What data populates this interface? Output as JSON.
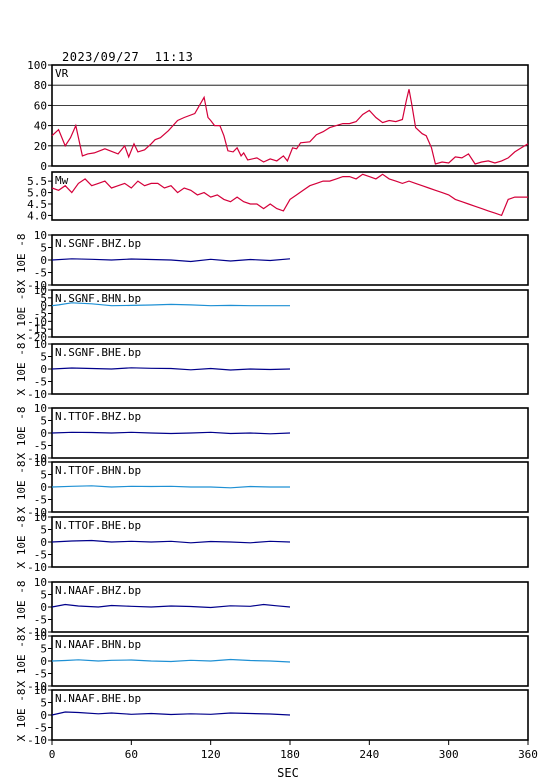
{
  "header": {
    "timestamp": "2023/09/27  11:13"
  },
  "xaxis": {
    "label": "SEC",
    "range": [
      0,
      360
    ],
    "ticks": [
      0,
      60,
      120,
      180,
      240,
      300,
      360
    ]
  },
  "colors": {
    "vr_mw": "#d4003a",
    "bhz": "#00008b",
    "bhn": "#1e90d4",
    "bhe": "#00008b",
    "axis": "#000000"
  },
  "chart_data": [
    {
      "type": "line",
      "label": "VR",
      "ylim": [
        0,
        100
      ],
      "yticks": [
        0,
        20,
        40,
        60,
        80,
        100
      ],
      "grid": true,
      "x": [
        0,
        5,
        10,
        14,
        18,
        23,
        27,
        32,
        40,
        50,
        55,
        58,
        62,
        65,
        70,
        75,
        78,
        82,
        88,
        95,
        100,
        108,
        115,
        118,
        120,
        123,
        127,
        130,
        133,
        137,
        140,
        143,
        145,
        148,
        155,
        160,
        165,
        170,
        175,
        178,
        182,
        185,
        188,
        195,
        200,
        205,
        210,
        215,
        220,
        225,
        230,
        235,
        240,
        245,
        250,
        255,
        260,
        265,
        268,
        270,
        272,
        275,
        280,
        283,
        287,
        290,
        295,
        300,
        305,
        310,
        315,
        320,
        325,
        330,
        335,
        340,
        345,
        350,
        355,
        360
      ],
      "values": [
        30,
        36,
        20,
        28,
        40,
        10,
        12,
        13,
        17,
        12,
        20,
        9,
        22,
        14,
        16,
        22,
        26,
        28,
        35,
        45,
        48,
        52,
        68,
        48,
        45,
        40,
        40,
        30,
        15,
        14,
        18,
        10,
        13,
        6,
        8,
        4,
        7,
        5,
        10,
        5,
        18,
        17,
        23,
        24,
        31,
        34,
        38,
        40,
        42,
        42,
        44,
        51,
        55,
        48,
        43,
        45,
        44,
        46,
        65,
        76,
        62,
        38,
        32,
        30,
        18,
        2,
        4,
        3,
        9,
        8,
        12,
        2,
        4,
        5,
        3,
        5,
        8,
        14,
        18,
        22
      ]
    },
    {
      "type": "line",
      "label": "Mw",
      "ylim": [
        3.8,
        5.9
      ],
      "yticks": [
        4.0,
        4.5,
        5.0,
        5.5
      ],
      "ytick_labels": [
        "4.0",
        "4.5",
        "5.0",
        "5.5"
      ],
      "grid": false,
      "x": [
        0,
        5,
        10,
        15,
        20,
        25,
        30,
        35,
        40,
        45,
        50,
        55,
        60,
        65,
        70,
        75,
        80,
        85,
        90,
        95,
        100,
        105,
        110,
        115,
        120,
        125,
        130,
        135,
        140,
        145,
        150,
        155,
        160,
        165,
        170,
        175,
        180,
        185,
        190,
        195,
        200,
        205,
        210,
        215,
        220,
        225,
        230,
        235,
        240,
        245,
        250,
        255,
        260,
        265,
        270,
        275,
        280,
        285,
        290,
        295,
        300,
        305,
        310,
        315,
        320,
        325,
        330,
        335,
        340,
        345,
        350,
        355,
        360
      ],
      "values": [
        5.2,
        5.1,
        5.3,
        5.0,
        5.4,
        5.6,
        5.3,
        5.4,
        5.5,
        5.2,
        5.3,
        5.4,
        5.2,
        5.5,
        5.3,
        5.4,
        5.4,
        5.2,
        5.3,
        5.0,
        5.2,
        5.1,
        4.9,
        5.0,
        4.8,
        4.9,
        4.7,
        4.6,
        4.8,
        4.6,
        4.5,
        4.5,
        4.3,
        4.5,
        4.3,
        4.2,
        4.7,
        4.9,
        5.1,
        5.3,
        5.4,
        5.5,
        5.5,
        5.6,
        5.7,
        5.7,
        5.6,
        5.8,
        5.7,
        5.6,
        5.8,
        5.6,
        5.5,
        5.4,
        5.5,
        5.4,
        5.3,
        5.2,
        5.1,
        5.0,
        4.9,
        4.7,
        4.6,
        4.5,
        4.4,
        4.3,
        4.2,
        4.1,
        4.0,
        4.7,
        4.8,
        4.8,
        4.8
      ]
    },
    {
      "type": "line",
      "label": "N.SGNF.BHZ.bp",
      "ylabel": "X 10E -8",
      "ylim": [
        -10,
        10
      ],
      "yticks": [
        -10,
        -5,
        0,
        5,
        10
      ],
      "x": [
        0,
        15,
        30,
        45,
        60,
        75,
        90,
        105,
        120,
        135,
        150,
        165,
        180
      ],
      "values": [
        0.0,
        0.5,
        0.3,
        0.0,
        0.4,
        0.2,
        0.0,
        -0.6,
        0.3,
        -0.4,
        0.2,
        -0.2,
        0.5
      ]
    },
    {
      "type": "line",
      "label": "N.SGNF.BHN.bp",
      "ylabel": "X 10E -8",
      "ylim": [
        -20,
        10
      ],
      "yticks": [
        -20,
        -15,
        -10,
        -5,
        0,
        5,
        10
      ],
      "x": [
        0,
        5,
        15,
        30,
        45,
        60,
        75,
        90,
        105,
        120,
        135,
        150,
        165,
        180
      ],
      "values": [
        0.0,
        0.5,
        1.8,
        1.2,
        0.0,
        0.2,
        0.4,
        0.8,
        0.5,
        0.0,
        0.2,
        0.0,
        0.0,
        0.0
      ]
    },
    {
      "type": "line",
      "label": "N.SGNF.BHE.bp",
      "ylabel": "X 10E -8",
      "ylim": [
        -10,
        10
      ],
      "yticks": [
        -10,
        -5,
        0,
        5,
        10
      ],
      "x": [
        0,
        15,
        30,
        45,
        60,
        75,
        90,
        105,
        120,
        135,
        150,
        165,
        180
      ],
      "values": [
        0.0,
        0.4,
        0.2,
        0.0,
        0.5,
        0.3,
        0.2,
        -0.3,
        0.2,
        -0.4,
        0.0,
        -0.2,
        0.0
      ]
    },
    {
      "type": "line",
      "label": "N.TTOF.BHZ.bp",
      "ylabel": "X 10E -8",
      "ylim": [
        -10,
        10
      ],
      "yticks": [
        -10,
        -5,
        0,
        5,
        10
      ],
      "x": [
        0,
        15,
        30,
        45,
        60,
        75,
        90,
        105,
        120,
        135,
        150,
        165,
        180
      ],
      "values": [
        0.0,
        0.3,
        0.2,
        0.0,
        0.3,
        0.0,
        -0.2,
        0.0,
        0.3,
        -0.2,
        0.0,
        -0.3,
        0.0
      ]
    },
    {
      "type": "line",
      "label": "N.TTOF.BHN.bp",
      "ylabel": "X 10E -8",
      "ylim": [
        -10,
        10
      ],
      "yticks": [
        -10,
        -5,
        0,
        5,
        10
      ],
      "x": [
        0,
        15,
        30,
        45,
        60,
        75,
        90,
        105,
        120,
        135,
        150,
        165,
        180
      ],
      "values": [
        0.0,
        0.3,
        0.5,
        0.0,
        0.3,
        0.2,
        0.3,
        0.0,
        0.0,
        -0.3,
        0.2,
        0.0,
        0.0
      ]
    },
    {
      "type": "line",
      "label": "N.TTOF.BHE.bp",
      "ylabel": "X 10E -8",
      "ylim": [
        -10,
        10
      ],
      "yticks": [
        -10,
        -5,
        0,
        5,
        10
      ],
      "x": [
        0,
        15,
        30,
        45,
        60,
        75,
        90,
        105,
        120,
        135,
        150,
        165,
        180
      ],
      "values": [
        0.0,
        0.4,
        0.6,
        0.0,
        0.3,
        0.0,
        0.3,
        -0.3,
        0.2,
        0.0,
        -0.3,
        0.3,
        0.0
      ]
    },
    {
      "type": "line",
      "label": "N.NAAF.BHZ.bp",
      "ylabel": "X 10E -8",
      "ylim": [
        -10,
        10
      ],
      "yticks": [
        -10,
        -5,
        0,
        5,
        10
      ],
      "x": [
        0,
        10,
        20,
        35,
        45,
        60,
        75,
        90,
        105,
        120,
        135,
        150,
        160,
        170,
        180
      ],
      "values": [
        0.0,
        1.0,
        0.4,
        0.0,
        0.6,
        0.3,
        0.0,
        0.4,
        0.2,
        -0.2,
        0.5,
        0.3,
        1.0,
        0.5,
        0.0
      ]
    },
    {
      "type": "line",
      "label": "N.NAAF.BHN.bp",
      "ylabel": "X 10E -8",
      "ylim": [
        -10,
        10
      ],
      "yticks": [
        -10,
        -5,
        0,
        5,
        10
      ],
      "x": [
        0,
        10,
        20,
        35,
        45,
        60,
        75,
        90,
        105,
        120,
        135,
        150,
        165,
        180
      ],
      "values": [
        0.0,
        0.2,
        0.5,
        0.0,
        0.3,
        0.4,
        0.0,
        -0.2,
        0.3,
        0.0,
        0.6,
        0.2,
        0.0,
        -0.4
      ]
    },
    {
      "type": "line",
      "label": "N.NAAF.BHE.bp",
      "ylabel": "X 10E -8",
      "ylim": [
        -10,
        10
      ],
      "yticks": [
        -10,
        -5,
        0,
        5,
        10
      ],
      "x": [
        0,
        10,
        20,
        35,
        45,
        60,
        75,
        90,
        105,
        120,
        135,
        150,
        165,
        180
      ],
      "values": [
        0.0,
        1.2,
        1.0,
        0.5,
        0.8,
        0.3,
        0.6,
        0.2,
        0.5,
        0.3,
        0.8,
        0.6,
        0.4,
        0.0
      ]
    }
  ]
}
